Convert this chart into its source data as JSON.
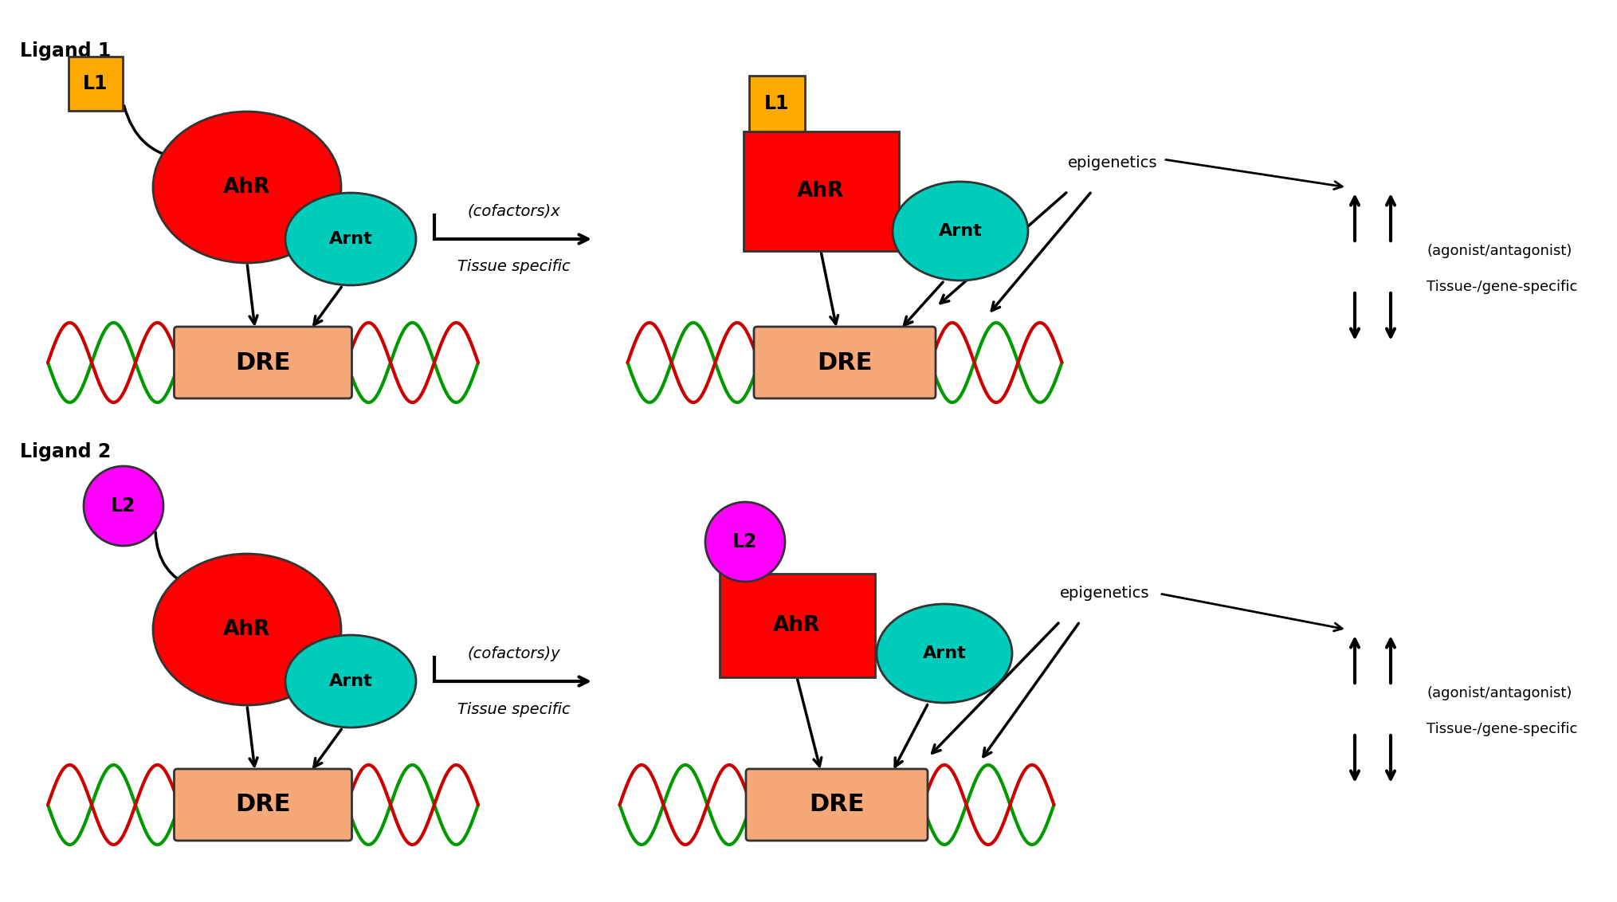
{
  "bg_color": "#ffffff",
  "ahr_color": "#ff0000",
  "arnt_color": "#00ccbb",
  "dre_color": "#f5a878",
  "l1_color": "#ffaa00",
  "l2_color": "#ff00ff",
  "dna_green": "#009900",
  "dna_red": "#cc0000",
  "text_color": "#000000",
  "labels": {
    "ligand1": "Ligand 1",
    "ligand2": "Ligand 2",
    "L1": "L1",
    "L2": "L2",
    "AhR": "AhR",
    "Arnt": "Arnt",
    "DRE": "DRE",
    "cofactors_x": "(cofactors)x",
    "cofactors_y": "(cofactors)y",
    "tissue_specific": "Tissue specific",
    "epigenetics": "epigenetics",
    "agonist": "(agonist/antagonist)",
    "tissue_gene": "Tissue-/gene-specific"
  }
}
